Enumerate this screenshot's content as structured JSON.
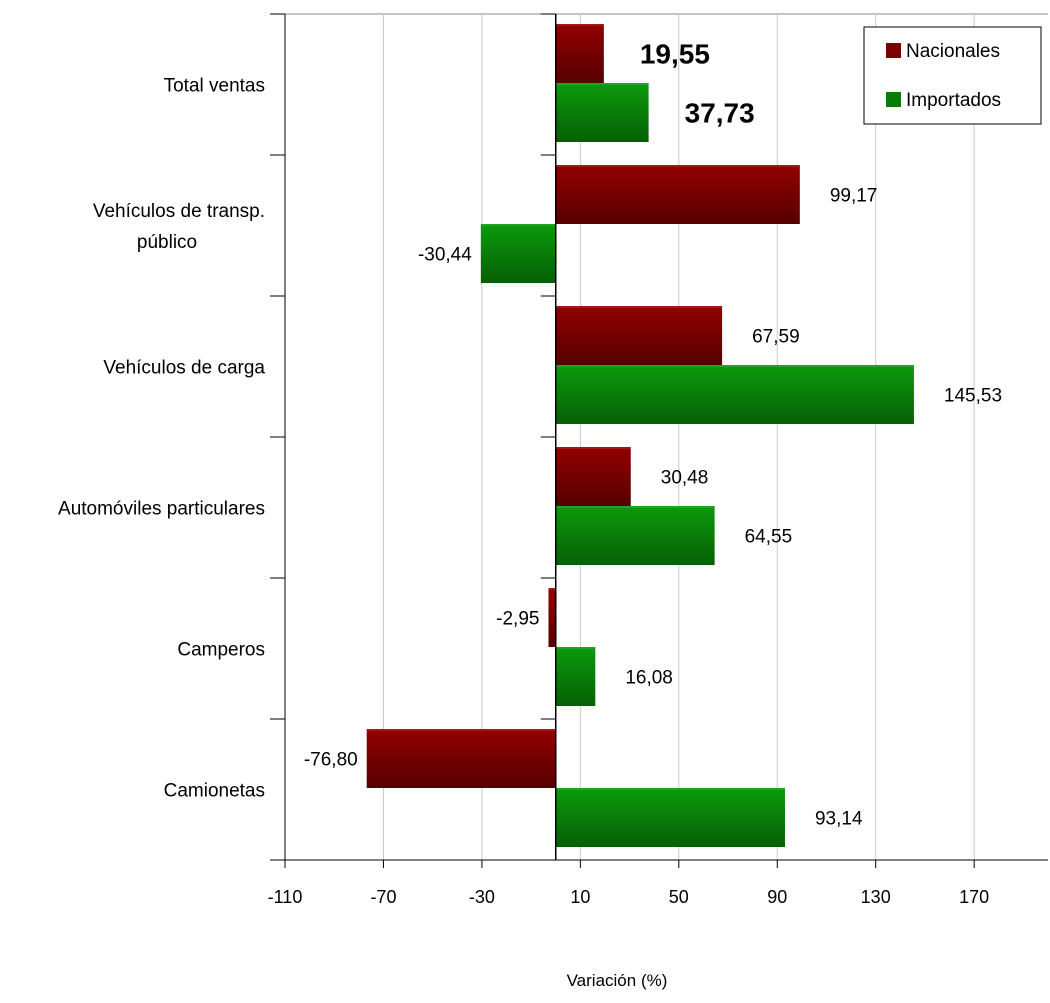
{
  "chart_data": {
    "type": "bar",
    "orientation": "horizontal",
    "categories": [
      [
        "Total ventas"
      ],
      [
        "Vehículos de transp.",
        "público"
      ],
      [
        "Vehículos de carga"
      ],
      [
        "Automóviles particulares"
      ],
      [
        "Camperos"
      ],
      [
        "Camionetas"
      ]
    ],
    "series": [
      {
        "name": "Nacionales",
        "color": "#7a0000",
        "values": [
          19.55,
          99.17,
          67.59,
          30.48,
          -2.95,
          -76.8
        ],
        "labels": [
          "19,55",
          "99,17",
          "67,59",
          "30,48",
          "-2,95",
          "-76,80"
        ]
      },
      {
        "name": "Importados",
        "color": "#0a7a0a",
        "values": [
          37.73,
          -30.44,
          145.53,
          64.55,
          16.08,
          93.14
        ],
        "labels": [
          "37,73",
          "-30,44",
          "145,53",
          "64,55",
          "16,08",
          "93,14"
        ]
      }
    ],
    "emphasized_category_index": 0,
    "xlim": [
      -110,
      200
    ],
    "xticks": [
      -110,
      -70,
      -30,
      10,
      50,
      90,
      130,
      170
    ],
    "xtick_labels": [
      "-110",
      "-70",
      "-30",
      "10",
      "50",
      "90",
      "130",
      "170"
    ],
    "xlabel": "Variación (%)",
    "ylabel": "",
    "title": "",
    "grid": "vertical",
    "legend_position": "top-right"
  }
}
